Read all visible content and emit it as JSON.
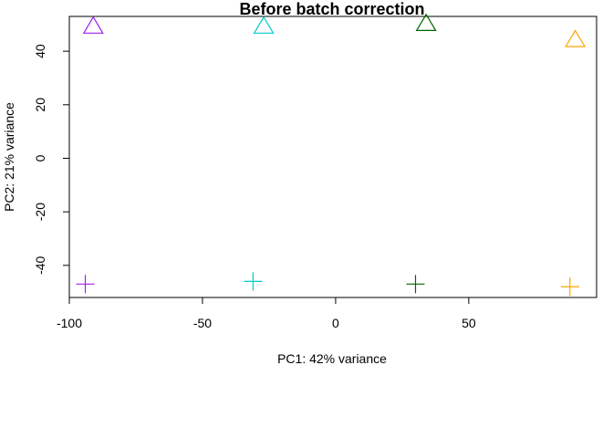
{
  "chart_data": {
    "type": "scatter",
    "title": "Before batch correction",
    "xlabel": "PC1: 42% variance",
    "ylabel": "PC2: 21% variance",
    "xlim": [
      -100,
      98
    ],
    "ylim": [
      -52,
      53
    ],
    "x_ticks": [
      -100,
      -50,
      0,
      50
    ],
    "x_tick_labels": [
      "-100",
      "-50",
      "0",
      "50"
    ],
    "y_ticks": [
      -40,
      -20,
      0,
      20,
      40
    ],
    "y_tick_labels": [
      "-40",
      "-20",
      "0",
      "20",
      "40"
    ],
    "grid": false,
    "points": [
      {
        "x": -91,
        "y": 49,
        "shape": "triangle",
        "color": "#A020F0"
      },
      {
        "x": -27,
        "y": 49,
        "shape": "triangle",
        "color": "#00CDCD"
      },
      {
        "x": 34,
        "y": 50,
        "shape": "triangle",
        "color": "#006400"
      },
      {
        "x": 90,
        "y": 44,
        "shape": "triangle",
        "color": "#FFA500"
      },
      {
        "x": -94,
        "y": -47,
        "shape": "plus",
        "color": "#A020F0"
      },
      {
        "x": -31,
        "y": -46,
        "shape": "plus",
        "color": "#00CDCD"
      },
      {
        "x": 30,
        "y": -47,
        "shape": "plus",
        "color": "#006400"
      },
      {
        "x": 88,
        "y": -48,
        "shape": "plus",
        "color": "#FFA500"
      }
    ]
  }
}
